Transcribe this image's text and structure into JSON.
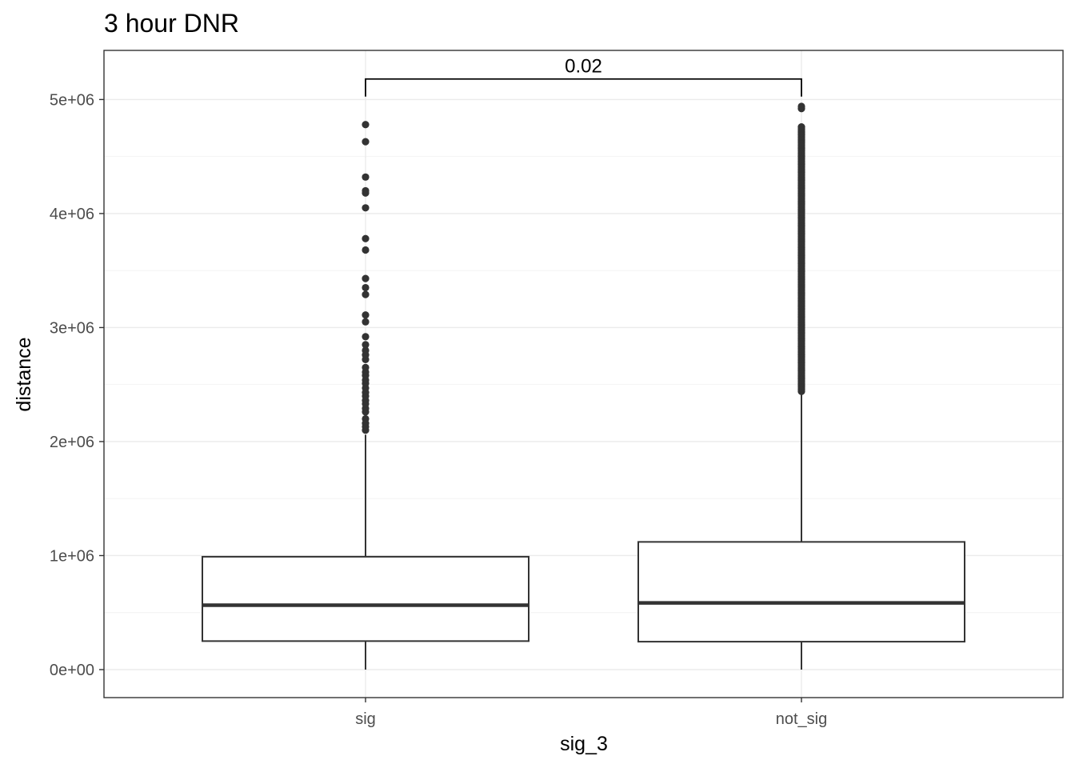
{
  "chart_data": {
    "type": "boxplot",
    "title": "3 hour DNR",
    "xlabel": "sig_3",
    "ylabel": "distance",
    "categories": [
      "sig",
      "not_sig"
    ],
    "ylim": [
      -500000,
      5180000
    ],
    "y_ticks": [
      0,
      1000000,
      2000000,
      3000000,
      4000000,
      5000000
    ],
    "y_tick_labels": [
      "0e+00",
      "1e+06",
      "2e+06",
      "3e+06",
      "4e+06",
      "5e+06"
    ],
    "grid": true,
    "boxes": [
      {
        "category": "sig",
        "whisker_low": 0,
        "q1": 250000,
        "median": 565000,
        "q3": 990000,
        "whisker_high": 2060000,
        "outliers": [
          2100000,
          2130000,
          2160000,
          2200000,
          2260000,
          2290000,
          2330000,
          2360000,
          2400000,
          2430000,
          2470000,
          2510000,
          2540000,
          2580000,
          2610000,
          2650000,
          2720000,
          2760000,
          2800000,
          2850000,
          2920000,
          3050000,
          3110000,
          3290000,
          3350000,
          3430000,
          3680000,
          3780000,
          4050000,
          4180000,
          4200000,
          4320000,
          4630000,
          4780000
        ]
      },
      {
        "category": "not_sig",
        "whisker_low": 0,
        "q1": 245000,
        "median": 585000,
        "q3": 1120000,
        "whisker_high": 2420000,
        "outlier_range": [
          2440000,
          4760000
        ],
        "outliers": [
          4920000,
          4940000
        ]
      }
    ],
    "comparison": {
      "groups": [
        "sig",
        "not_sig"
      ],
      "label": "0.02",
      "y": 5180000
    }
  }
}
